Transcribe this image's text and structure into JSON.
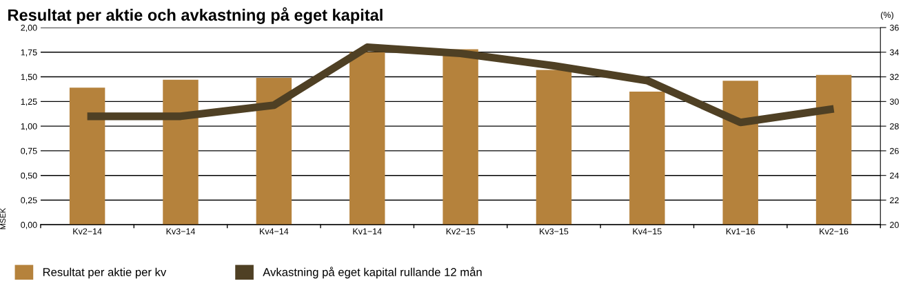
{
  "chart_data": {
    "type": "bar",
    "title": "Resultat per aktie och avkastning på eget kapital",
    "categories": [
      "Kv2−14",
      "Kv3−14",
      "Kv4−14",
      "Kv1−14",
      "Kv2−15",
      "Kv3−15",
      "Kv4−15",
      "Kv1−16",
      "Kv2−16"
    ],
    "series": [
      {
        "name": "Resultat per aktie per kv",
        "color": "#b5823c",
        "values": [
          1.39,
          1.47,
          1.49,
          1.75,
          1.78,
          1.57,
          1.35,
          1.46,
          1.52
        ]
      },
      {
        "name": "Avkastning på eget kapital rullande 12 mån",
        "type": "line",
        "axis": "y2",
        "color": "#4f4024",
        "values": [
          28.8,
          28.8,
          29.7,
          34.4,
          33.9,
          32.9,
          31.7,
          28.3,
          29.4
        ]
      }
    ],
    "ylabel": "MSEK",
    "y2label": "(%)",
    "ylim": [
      0,
      2
    ],
    "yticks": [
      {
        "value": 0,
        "label": "0,00"
      },
      {
        "value": 0.25,
        "label": "0,25"
      },
      {
        "value": 0.5,
        "label": "0,50"
      },
      {
        "value": 0.75,
        "label": "0,75"
      },
      {
        "value": 1,
        "label": "1,00"
      },
      {
        "value": 1.25,
        "label": "1,25"
      },
      {
        "value": 1.5,
        "label": "1,50"
      },
      {
        "value": 1.75,
        "label": "1,75"
      },
      {
        "value": 2,
        "label": "2,00"
      }
    ],
    "y2lim": [
      20,
      36
    ],
    "y2ticks": [
      20,
      22,
      24,
      26,
      28,
      30,
      32,
      34,
      36
    ],
    "grid": "y",
    "legend": "bottom left"
  }
}
